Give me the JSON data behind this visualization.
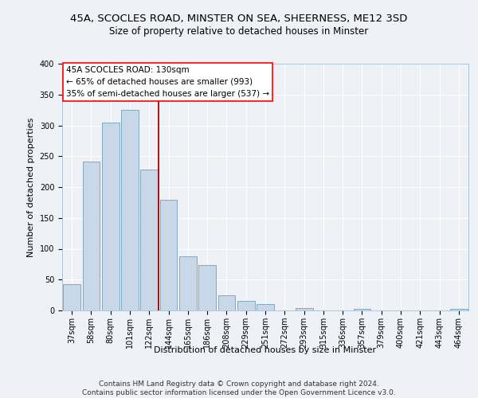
{
  "title_line1": "45A, SCOCLES ROAD, MINSTER ON SEA, SHEERNESS, ME12 3SD",
  "title_line2": "Size of property relative to detached houses in Minster",
  "xlabel": "Distribution of detached houses by size in Minster",
  "ylabel": "Number of detached properties",
  "bar_color": "#c8d8e8",
  "bar_edge_color": "#6090a8",
  "categories": [
    "37sqm",
    "58sqm",
    "80sqm",
    "101sqm",
    "122sqm",
    "144sqm",
    "165sqm",
    "186sqm",
    "208sqm",
    "229sqm",
    "251sqm",
    "272sqm",
    "293sqm",
    "315sqm",
    "336sqm",
    "357sqm",
    "379sqm",
    "400sqm",
    "421sqm",
    "443sqm",
    "464sqm"
  ],
  "values": [
    42,
    241,
    305,
    325,
    228,
    180,
    88,
    73,
    25,
    15,
    10,
    0,
    4,
    0,
    0,
    3,
    0,
    0,
    0,
    0,
    3
  ],
  "ylim": [
    0,
    400
  ],
  "yticks": [
    0,
    50,
    100,
    150,
    200,
    250,
    300,
    350,
    400
  ],
  "annotation_box_text": "45A SCOCLES ROAD: 130sqm\n← 65% of detached houses are smaller (993)\n35% of semi-detached houses are larger (537) →",
  "vline_color": "#aa0000",
  "background_color": "#eef2f7",
  "grid_color": "#ffffff",
  "footer_text": "Contains HM Land Registry data © Crown copyright and database right 2024.\nContains public sector information licensed under the Open Government Licence v3.0.",
  "title_fontsize": 9.5,
  "subtitle_fontsize": 8.5,
  "annotation_fontsize": 7.5,
  "tick_fontsize": 7,
  "ylabel_fontsize": 8,
  "xlabel_fontsize": 8,
  "footer_fontsize": 6.5
}
